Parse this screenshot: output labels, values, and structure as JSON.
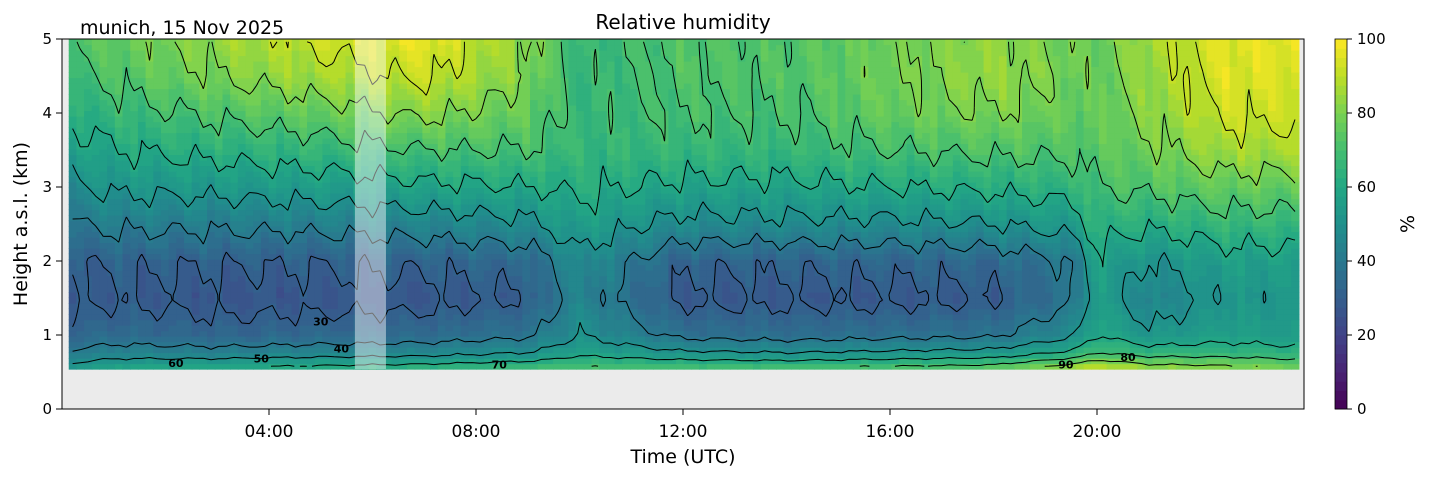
{
  "chart_data": {
    "type": "heatmap",
    "title": "Relative humidity",
    "subtitle": "munich, 15 Nov 2025",
    "xlabel": "Time (UTC)",
    "ylabel": "Height a.s.l. (km)",
    "xlim_hours": [
      0,
      24
    ],
    "ylim": [
      0,
      5
    ],
    "x_ticks": [
      {
        "hour": 4,
        "label": "04:00"
      },
      {
        "hour": 8,
        "label": "08:00"
      },
      {
        "hour": 12,
        "label": "12:00"
      },
      {
        "hour": 16,
        "label": "16:00"
      },
      {
        "hour": 20,
        "label": "20:00"
      }
    ],
    "y_ticks": [
      {
        "value": 0,
        "label": "0"
      },
      {
        "value": 1,
        "label": "1"
      },
      {
        "value": 2,
        "label": "2"
      },
      {
        "value": 3,
        "label": "3"
      },
      {
        "value": 4,
        "label": "4"
      },
      {
        "value": 5,
        "label": "5"
      }
    ],
    "colorbar": {
      "label": "%",
      "range": [
        0,
        100
      ],
      "colormap": "viridis",
      "ticks": [
        {
          "value": 0,
          "label": "0"
        },
        {
          "value": 20,
          "label": "20"
        },
        {
          "value": 40,
          "label": "40"
        },
        {
          "value": 60,
          "label": "60"
        },
        {
          "value": 80,
          "label": "80"
        },
        {
          "value": 100,
          "label": "100"
        }
      ]
    },
    "data_extent": {
      "time_hours": [
        0.13,
        23.9
      ],
      "height_km": [
        0.54,
        5.0
      ]
    },
    "masked_interval_hours": [
      5.66,
      6.26
    ],
    "contour_levels": [
      30,
      40,
      50,
      60,
      70,
      80,
      90
    ],
    "contour_labels": [
      {
        "text": "60",
        "hour": 2.2,
        "km": 0.62
      },
      {
        "text": "50",
        "hour": 3.85,
        "km": 0.68
      },
      {
        "text": "30",
        "hour": 5.0,
        "km": 1.18
      },
      {
        "text": "40",
        "hour": 5.4,
        "km": 0.82
      },
      {
        "text": "70",
        "hour": 8.45,
        "km": 0.6
      },
      {
        "text": "90",
        "hour": 19.4,
        "km": 0.6
      },
      {
        "text": "80",
        "hour": 20.6,
        "km": 0.7
      }
    ],
    "profile_km": [
      0.54,
      0.75,
      1.0,
      1.5,
      2.0,
      2.5,
      3.0,
      3.5,
      4.0,
      4.5,
      5.0
    ],
    "profiles": [
      {
        "hour": 0.2,
        "rh": [
          55,
          42,
          33,
          28,
          30,
          40,
          48,
          56,
          62,
          68,
          72
        ]
      },
      {
        "hour": 1.0,
        "rh": [
          60,
          45,
          35,
          29,
          32,
          42,
          52,
          60,
          66,
          72,
          76
        ]
      },
      {
        "hour": 3.0,
        "rh": [
          62,
          44,
          33,
          27,
          31,
          42,
          53,
          63,
          72,
          80,
          84
        ]
      },
      {
        "hour": 5.0,
        "rh": [
          64,
          46,
          34,
          27,
          31,
          43,
          55,
          66,
          76,
          86,
          92
        ]
      },
      {
        "hour": 7.0,
        "rh": [
          66,
          47,
          35,
          27,
          32,
          45,
          58,
          70,
          82,
          92,
          97
        ]
      },
      {
        "hour": 9.0,
        "rh": [
          70,
          50,
          38,
          30,
          34,
          48,
          60,
          70,
          76,
          80,
          82
        ]
      },
      {
        "hour": 10.0,
        "rh": [
          72,
          58,
          50,
          45,
          48,
          56,
          62,
          66,
          66,
          66,
          66
        ]
      },
      {
        "hour": 12.0,
        "rh": [
          72,
          52,
          37,
          28,
          32,
          47,
          58,
          66,
          70,
          72,
          72
        ]
      },
      {
        "hour": 14.0,
        "rh": [
          72,
          50,
          36,
          28,
          32,
          48,
          58,
          66,
          70,
          72,
          72
        ]
      },
      {
        "hour": 16.0,
        "rh": [
          74,
          52,
          37,
          28,
          33,
          48,
          60,
          70,
          76,
          78,
          78
        ]
      },
      {
        "hour": 18.0,
        "rh": [
          76,
          54,
          38,
          29,
          34,
          50,
          62,
          72,
          80,
          84,
          84
        ]
      },
      {
        "hour": 19.5,
        "rh": [
          88,
          62,
          48,
          38,
          40,
          54,
          64,
          72,
          76,
          78,
          78
        ]
      },
      {
        "hour": 20.0,
        "rh": [
          94,
          70,
          60,
          56,
          58,
          64,
          70,
          74,
          76,
          76,
          76
        ]
      },
      {
        "hour": 21.0,
        "rh": [
          86,
          66,
          52,
          44,
          50,
          62,
          72,
          78,
          82,
          84,
          86
        ]
      },
      {
        "hour": 22.5,
        "rh": [
          84,
          66,
          56,
          52,
          56,
          66,
          76,
          86,
          92,
          95,
          96
        ]
      },
      {
        "hour": 23.9,
        "rh": [
          80,
          64,
          54,
          52,
          56,
          66,
          76,
          86,
          92,
          95,
          96
        ]
      }
    ]
  }
}
